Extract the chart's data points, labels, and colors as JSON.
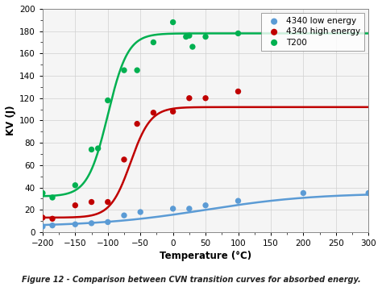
{
  "title": "Figure 12 - Comparison between CVN transition curves for absorbed energy.",
  "xlabel": "Temperature (°C)",
  "ylabel": "KV (J)",
  "xlim": [
    -200,
    300
  ],
  "ylim": [
    0,
    200
  ],
  "xticks": [
    -200,
    -150,
    -100,
    -50,
    0,
    50,
    100,
    150,
    200,
    250,
    300
  ],
  "yticks": [
    0,
    20,
    40,
    60,
    80,
    100,
    120,
    140,
    160,
    180,
    200
  ],
  "series": [
    {
      "label": "4340 low energy",
      "color": "#5b9bd5",
      "scatter_x": [
        -200,
        -185,
        -150,
        -125,
        -100,
        -75,
        -50,
        0,
        25,
        50,
        100,
        200,
        300
      ],
      "scatter_y": [
        5,
        6,
        7,
        8,
        9,
        15,
        18,
        21,
        21,
        24,
        28,
        35,
        35
      ],
      "sigmoid_lower": 5,
      "sigmoid_upper": 35,
      "sigmoid_T50": 50,
      "sigmoid_k": 0.012
    },
    {
      "label": "4340 high energy",
      "color": "#c00000",
      "scatter_x": [
        -200,
        -185,
        -150,
        -125,
        -100,
        -75,
        -55,
        -30,
        0,
        25,
        50,
        100
      ],
      "scatter_y": [
        13,
        12,
        24,
        27,
        27,
        65,
        97,
        107,
        108,
        120,
        120,
        126
      ],
      "sigmoid_lower": 13,
      "sigmoid_upper": 112,
      "sigmoid_T50": -65,
      "sigmoid_k": 0.065
    },
    {
      "label": "T200",
      "color": "#00b050",
      "scatter_x": [
        -200,
        -185,
        -150,
        -125,
        -115,
        -100,
        -75,
        -55,
        -30,
        0,
        20,
        25,
        30,
        50,
        100
      ],
      "scatter_y": [
        35,
        31,
        42,
        74,
        75,
        118,
        145,
        145,
        170,
        188,
        175,
        176,
        166,
        175,
        178
      ],
      "sigmoid_lower": 32,
      "sigmoid_upper": 178,
      "sigmoid_T50": -100,
      "sigmoid_k": 0.065
    }
  ],
  "legend_loc": "upper right",
  "background_color": "#ffffff",
  "plot_bg_color": "#f5f5f5",
  "grid_color": "#d0d0d0"
}
